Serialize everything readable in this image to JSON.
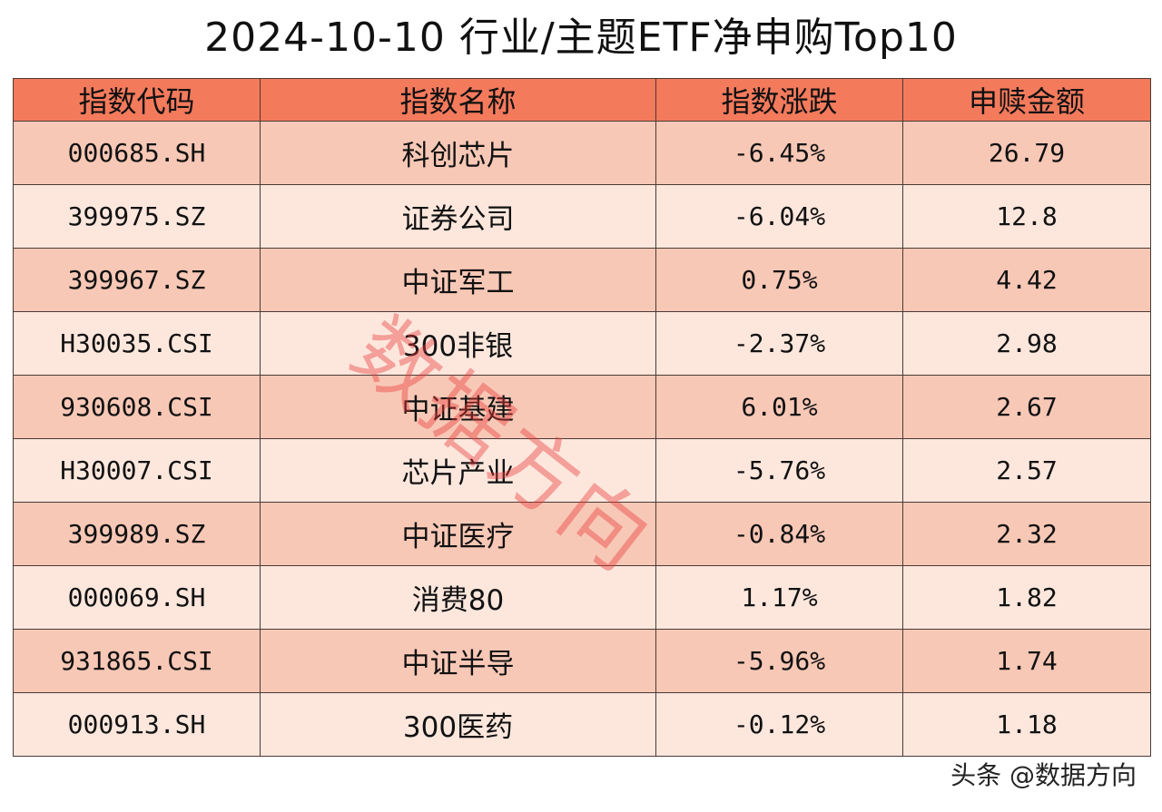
{
  "title": "2024-10-10 行业/主题ETF净申购Top10",
  "table": {
    "headers": [
      "指数代码",
      "指数名称",
      "指数涨跌",
      "申赎金额"
    ],
    "rows": [
      {
        "code": "000685.SH",
        "name": "科创芯片",
        "change": "-6.45%",
        "amount": "26.79"
      },
      {
        "code": "399975.SZ",
        "name": "证券公司",
        "change": "-6.04%",
        "amount": "12.8"
      },
      {
        "code": "399967.SZ",
        "name": "中证军工",
        "change": "0.75%",
        "amount": "4.42"
      },
      {
        "code": "H30035.CSI",
        "name": "300非银",
        "change": "-2.37%",
        "amount": "2.98"
      },
      {
        "code": "930608.CSI",
        "name": "中证基建",
        "change": "6.01%",
        "amount": "2.67"
      },
      {
        "code": "H30007.CSI",
        "name": "芯片产业",
        "change": "-5.76%",
        "amount": "2.57"
      },
      {
        "code": "399989.SZ",
        "name": "中证医疗",
        "change": "-0.84%",
        "amount": "2.32"
      },
      {
        "code": "000069.SH",
        "name": "消费80",
        "change": "1.17%",
        "amount": "1.82"
      },
      {
        "code": "931865.CSI",
        "name": "中证半导",
        "change": "-5.96%",
        "amount": "1.74"
      },
      {
        "code": "000913.SH",
        "name": "300医药",
        "change": "-0.12%",
        "amount": "1.18"
      }
    ]
  },
  "watermark": "数据方向",
  "footer": "头条 @数据方向",
  "colors": {
    "header_bg": "#f47a5c",
    "row_odd_bg": "#f8c8b6",
    "row_even_bg": "#fde7dd",
    "watermark": "#e83c3c"
  }
}
